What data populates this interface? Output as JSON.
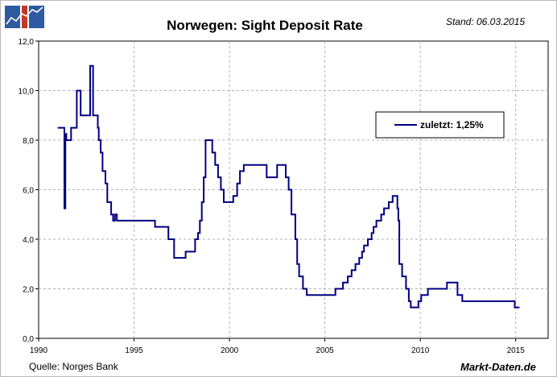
{
  "header": {
    "title": "Norwegen: Sight Deposit Rate",
    "stand": "Stand: 06.03.2015"
  },
  "footer": {
    "source": "Quelle: Norges Bank",
    "brand": "Markt-Daten.de"
  },
  "colors": {
    "series": "#000080",
    "grid": "#b0b0b0",
    "logo_blue": "#2d5aa0",
    "logo_red": "#c0392b"
  },
  "chart_data": {
    "type": "line",
    "title": "Norwegen: Sight Deposit Rate",
    "xlabel": "",
    "ylabel": "",
    "xlim": [
      1990,
      2016.7
    ],
    "ylim": [
      0,
      12
    ],
    "x_ticks": [
      1990,
      1995,
      2000,
      2005,
      2010,
      2015
    ],
    "x_tick_labels": [
      "1990",
      "1995",
      "2000",
      "2005",
      "2010",
      "2015"
    ],
    "y_ticks": [
      0,
      2,
      4,
      6,
      8,
      10,
      12
    ],
    "y_tick_labels": [
      "0,0",
      "2,0",
      "4,0",
      "6,0",
      "8,0",
      "10,0",
      "12,0"
    ],
    "grid": true,
    "legend": {
      "position": "top-right",
      "label": "zuletzt: 1,25%"
    },
    "series": [
      {
        "name": "Sight Deposit Rate",
        "step": true,
        "points": [
          [
            1991.0,
            8.5
          ],
          [
            1991.3,
            8.5
          ],
          [
            1991.35,
            5.25
          ],
          [
            1991.4,
            8.25
          ],
          [
            1991.45,
            8.0
          ],
          [
            1991.7,
            8.5
          ],
          [
            1992.0,
            10.0
          ],
          [
            1992.2,
            9.0
          ],
          [
            1992.7,
            11.0
          ],
          [
            1992.85,
            9.0
          ],
          [
            1993.1,
            8.5
          ],
          [
            1993.15,
            8.0
          ],
          [
            1993.25,
            7.5
          ],
          [
            1993.35,
            6.75
          ],
          [
            1993.5,
            6.25
          ],
          [
            1993.6,
            5.5
          ],
          [
            1993.8,
            5.0
          ],
          [
            1993.9,
            4.75
          ],
          [
            1994.0,
            5.0
          ],
          [
            1994.1,
            4.75
          ],
          [
            1996.1,
            4.5
          ],
          [
            1996.8,
            4.0
          ],
          [
            1997.1,
            3.25
          ],
          [
            1997.7,
            3.5
          ],
          [
            1998.2,
            4.0
          ],
          [
            1998.35,
            4.25
          ],
          [
            1998.45,
            4.75
          ],
          [
            1998.55,
            5.5
          ],
          [
            1998.65,
            6.5
          ],
          [
            1998.75,
            8.0
          ],
          [
            1999.1,
            7.5
          ],
          [
            1999.25,
            7.0
          ],
          [
            1999.4,
            6.5
          ],
          [
            1999.55,
            6.0
          ],
          [
            1999.7,
            5.5
          ],
          [
            2000.2,
            5.75
          ],
          [
            2000.4,
            6.25
          ],
          [
            2000.55,
            6.75
          ],
          [
            2000.75,
            7.0
          ],
          [
            2001.95,
            6.5
          ],
          [
            2002.5,
            7.0
          ],
          [
            2002.95,
            6.5
          ],
          [
            2003.1,
            6.0
          ],
          [
            2003.25,
            5.0
          ],
          [
            2003.45,
            4.0
          ],
          [
            2003.55,
            3.0
          ],
          [
            2003.65,
            2.5
          ],
          [
            2003.85,
            2.0
          ],
          [
            2004.05,
            1.75
          ],
          [
            2005.55,
            2.0
          ],
          [
            2005.95,
            2.25
          ],
          [
            2006.2,
            2.5
          ],
          [
            2006.4,
            2.75
          ],
          [
            2006.6,
            3.0
          ],
          [
            2006.8,
            3.25
          ],
          [
            2006.95,
            3.5
          ],
          [
            2007.05,
            3.75
          ],
          [
            2007.25,
            4.0
          ],
          [
            2007.45,
            4.25
          ],
          [
            2007.55,
            4.5
          ],
          [
            2007.7,
            4.75
          ],
          [
            2007.95,
            5.0
          ],
          [
            2008.1,
            5.25
          ],
          [
            2008.35,
            5.5
          ],
          [
            2008.55,
            5.75
          ],
          [
            2008.8,
            5.25
          ],
          [
            2008.85,
            4.75
          ],
          [
            2008.9,
            3.0
          ],
          [
            2009.05,
            2.5
          ],
          [
            2009.25,
            2.0
          ],
          [
            2009.4,
            1.5
          ],
          [
            2009.5,
            1.25
          ],
          [
            2009.9,
            1.5
          ],
          [
            2010.05,
            1.75
          ],
          [
            2010.4,
            2.0
          ],
          [
            2011.4,
            2.25
          ],
          [
            2011.95,
            1.75
          ],
          [
            2012.2,
            1.5
          ],
          [
            2014.95,
            1.25
          ],
          [
            2015.2,
            1.25
          ]
        ]
      }
    ]
  }
}
